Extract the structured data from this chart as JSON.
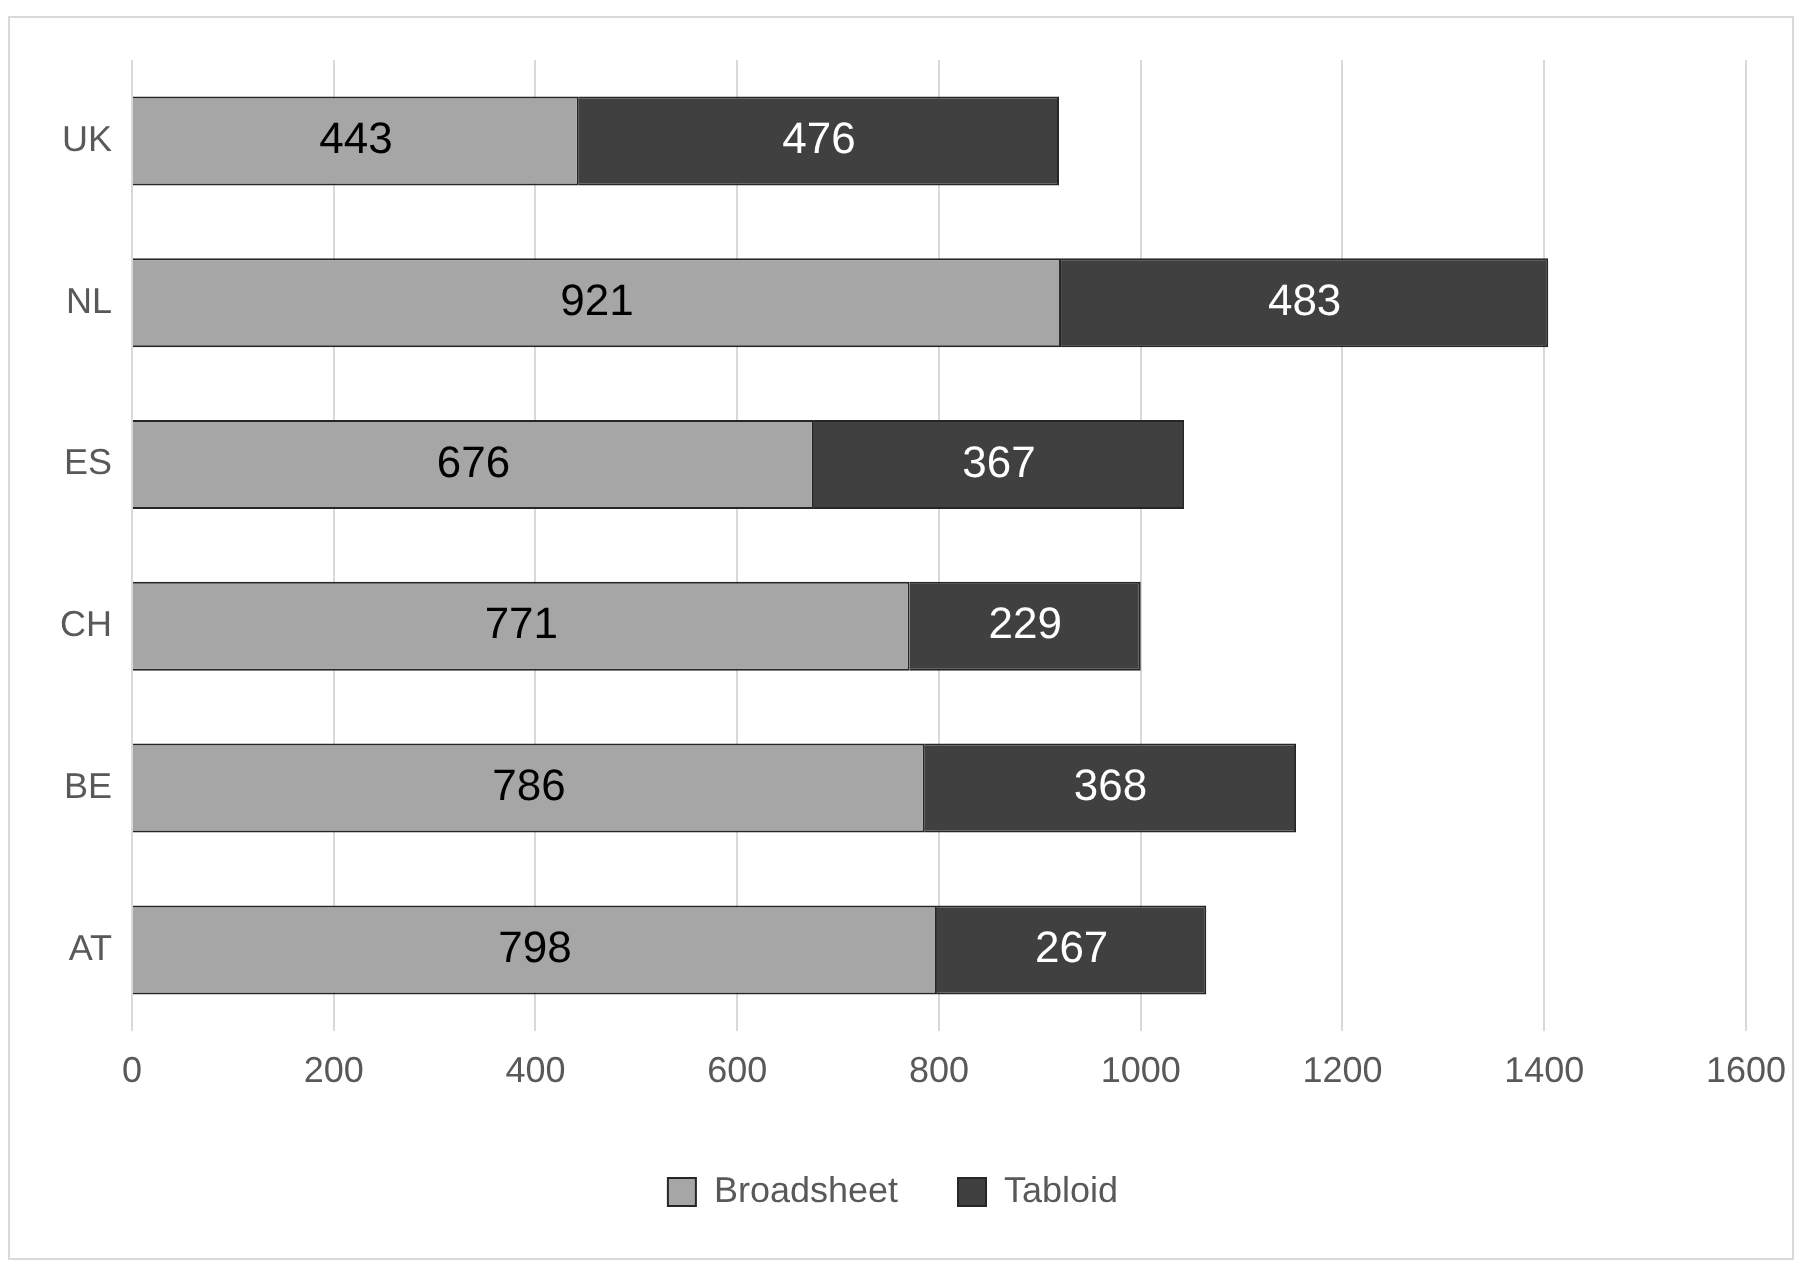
{
  "chart_data": {
    "type": "bar",
    "orientation": "horizontal",
    "stacked": true,
    "categories": [
      "UK",
      "NL",
      "ES",
      "CH",
      "BE",
      "AT"
    ],
    "series": [
      {
        "name": "Broadsheet",
        "color": "#a6a6a6",
        "values": [
          443,
          921,
          676,
          771,
          786,
          798
        ]
      },
      {
        "name": "Tabloid",
        "color": "#404040",
        "values": [
          476,
          483,
          367,
          229,
          368,
          267
        ]
      }
    ],
    "xlim": [
      0,
      1600
    ],
    "xticks": [
      0,
      200,
      400,
      600,
      800,
      1000,
      1200,
      1400,
      1600
    ],
    "grid": "x",
    "legend": "bottom",
    "data_labels": true
  }
}
